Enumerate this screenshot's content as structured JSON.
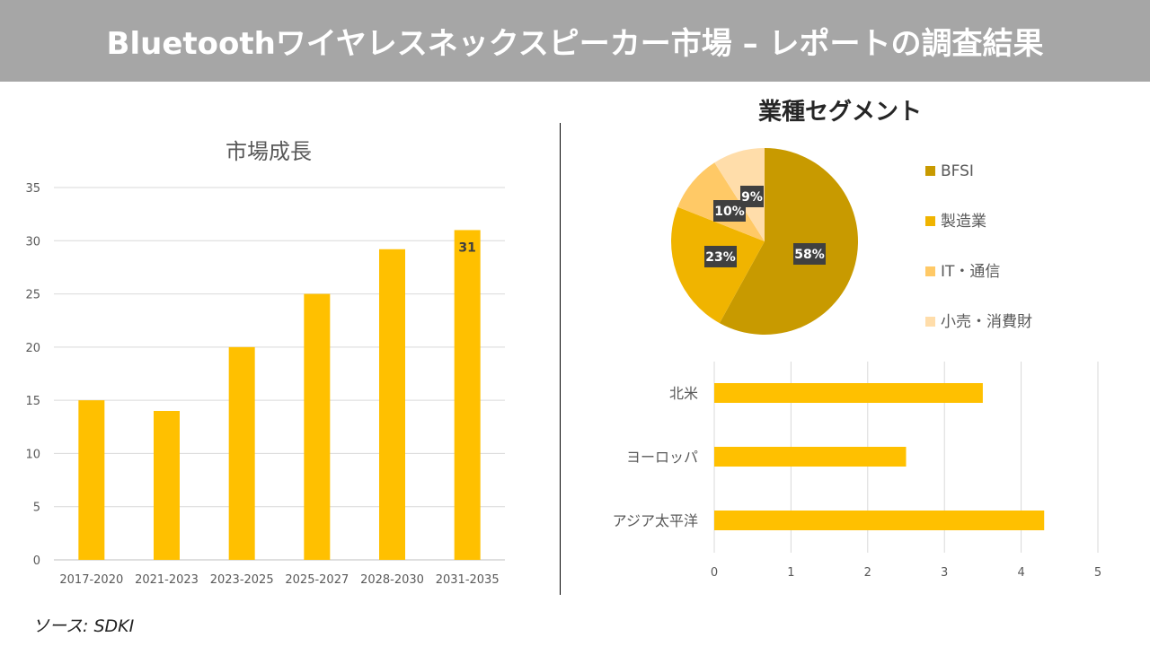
{
  "header": {
    "title": "Bluetoothワイヤレスネックスピーカー市場 – レポートの調査結果"
  },
  "source": "ソース: SDKI",
  "chart_data": [
    {
      "type": "bar",
      "title": "市場成長",
      "categories": [
        "2017-2020",
        "2021-2023",
        "2023-2025",
        "2025-2027",
        "2028-2030",
        "2031-2035"
      ],
      "values": [
        15,
        14,
        20,
        25,
        29.2,
        31
      ],
      "data_labels": {
        "5": "31"
      },
      "ylim": [
        0,
        35
      ],
      "yticks": [
        0,
        5,
        10,
        15,
        20,
        25,
        30,
        35
      ],
      "grid": true,
      "color": "#FFC000"
    },
    {
      "type": "pie",
      "title": "業種セグメント",
      "categories": [
        "BFSI",
        "製造業",
        "IT・通信",
        "小売・消費財"
      ],
      "values": [
        58,
        23,
        10,
        9
      ],
      "labels": [
        "58%",
        "23%",
        "10%",
        "9%"
      ],
      "colors": [
        "#C89A00",
        "#F0B400",
        "#FFC966",
        "#FFDDAA"
      ],
      "legend": "right"
    },
    {
      "type": "bar",
      "orientation": "horizontal",
      "categories": [
        "北米",
        "ヨーロッパ",
        "アジア太平洋"
      ],
      "values": [
        3.5,
        2.5,
        4.3
      ],
      "xlim": [
        0,
        5
      ],
      "xticks": [
        0,
        1,
        2,
        3,
        4,
        5
      ],
      "grid": true,
      "color": "#FFC000"
    }
  ]
}
